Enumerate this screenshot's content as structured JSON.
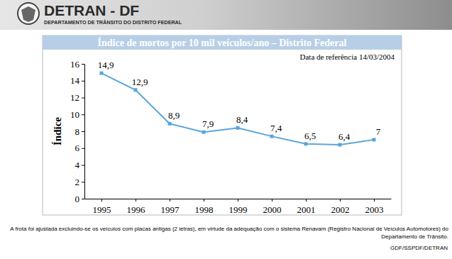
{
  "header": {
    "title": "DETRAN - DF",
    "subtitle": "DEPARTAMENTO DE TRÂNSITO DO DISTRITO FEDERAL"
  },
  "chart_data": {
    "type": "line",
    "title": "Índice de mortos por 10 mil veículos/ano – Distrito Federal",
    "subtitle": "Data de referência 14/03/2004",
    "y_label": "Índice",
    "categories": [
      "1995",
      "1996",
      "1997",
      "1998",
      "1999",
      "2000",
      "2001",
      "2002",
      "2003"
    ],
    "values": [
      14.9,
      12.9,
      8.9,
      7.9,
      8.4,
      7.4,
      6.5,
      6.4,
      7
    ],
    "value_labels": [
      "14,9",
      "12,9",
      "8,9",
      "7,9",
      "8,4",
      "7,4",
      "6,5",
      "6,4",
      "7"
    ],
    "data_labels": true,
    "color": "#5aa5dc",
    "marker": "square",
    "line_style": "solid",
    "grid": false,
    "ylim": [
      0,
      16
    ],
    "yticks": [
      0,
      2,
      4,
      6,
      8,
      10,
      12,
      14,
      16
    ],
    "annotations": [
      "A frota foi ajustada excluindo-se os veículos com placas antigas (2 letras), em virtude da adequação com o sistema Renavam (Registro Nacional de Veículos Automotores) do Departamento de Trânsito.",
      "GDF/SSPDF/DETRAN"
    ]
  }
}
